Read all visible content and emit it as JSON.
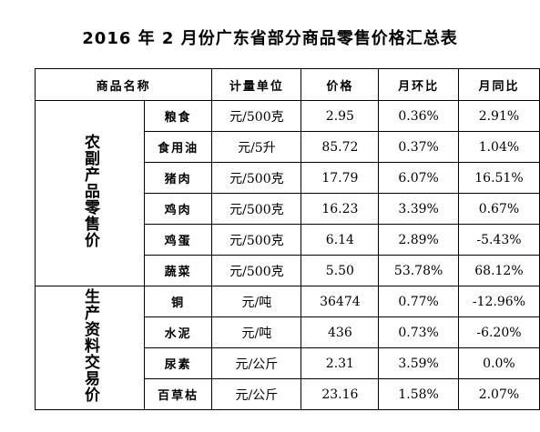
{
  "header": {
    "title": "2016 年 2 月份广东省部分商品零售价格汇总表"
  },
  "table": {
    "columns": [
      "商品名称",
      "计量单位",
      "价格",
      "月环比",
      "月同比"
    ],
    "groups": [
      {
        "label": "农副产品零售价",
        "rows": [
          [
            "粮食",
            "元/500克",
            "2.95",
            "0.36%",
            "2.91%"
          ],
          [
            "食用油",
            "元/5升",
            "85.72",
            "0.37%",
            "1.04%"
          ],
          [
            "猪肉",
            "元/500克",
            "17.79",
            "6.07%",
            "16.51%"
          ],
          [
            "鸡肉",
            "元/500克",
            "16.23",
            "3.39%",
            "0.67%"
          ],
          [
            "鸡蛋",
            "元/500克",
            "6.14",
            "2.89%",
            "-5.43%"
          ],
          [
            "蔬菜",
            "元/500克",
            "5.50",
            "53.78%",
            "68.12%"
          ]
        ]
      },
      {
        "label": "生产资料交易价",
        "rows": [
          [
            "铜",
            "元/吨",
            "36474",
            "0.77%",
            "-12.96%"
          ],
          [
            "水泥",
            "元/吨",
            "436",
            "0.73%",
            "-6.20%"
          ],
          [
            "尿素",
            "元/公斤",
            "2.31",
            "3.59%",
            "0.0%"
          ],
          [
            "百草枯",
            "元/公斤",
            "23.16",
            "1.58%",
            "2.07%"
          ]
        ]
      }
    ]
  }
}
